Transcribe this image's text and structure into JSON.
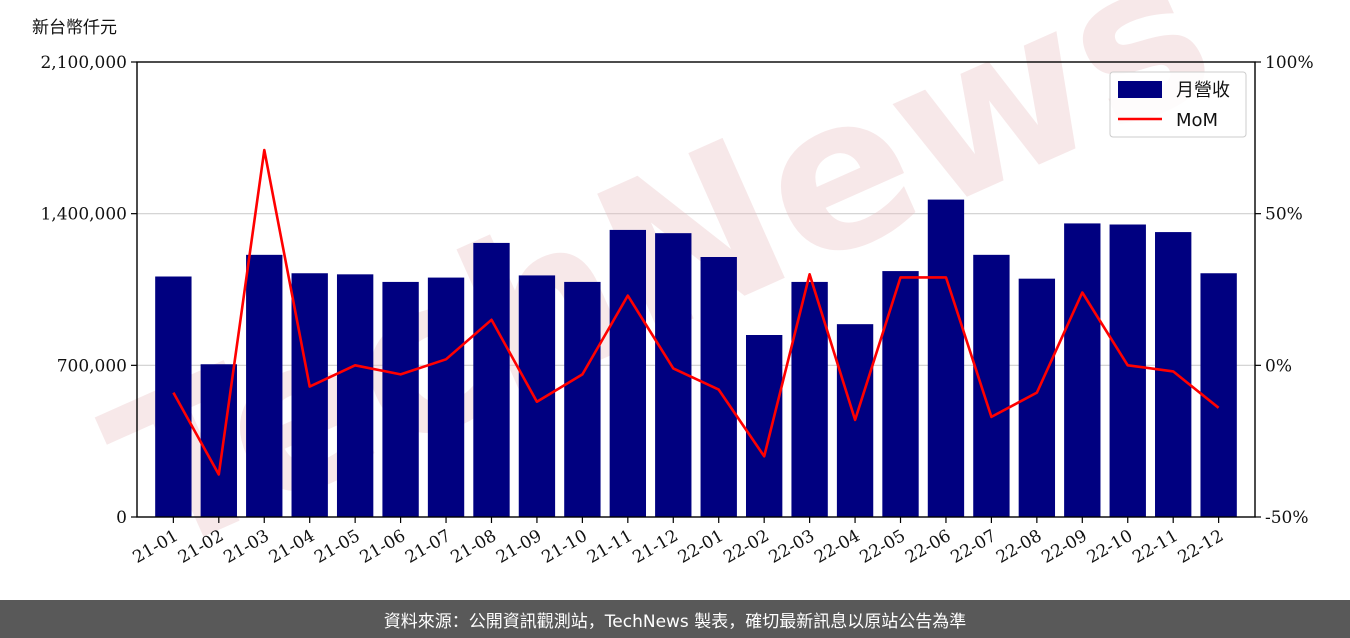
{
  "chart_data": {
    "type": "bar",
    "y_unit_label": "新台幣仟元",
    "categories": [
      "21-01",
      "21-02",
      "21-03",
      "21-04",
      "21-05",
      "21-06",
      "21-07",
      "21-08",
      "21-09",
      "21-10",
      "21-11",
      "21-12",
      "22-01",
      "22-02",
      "22-03",
      "22-04",
      "22-05",
      "22-06",
      "22-07",
      "22-08",
      "22-09",
      "22-10",
      "22-11",
      "22-12"
    ],
    "series": [
      {
        "name": "月營收",
        "type": "bar",
        "axis": "left",
        "color": "#000080",
        "values": [
          1110000,
          705000,
          1210000,
          1125000,
          1120000,
          1085000,
          1105000,
          1265000,
          1115000,
          1085000,
          1325000,
          1310000,
          1200000,
          840000,
          1085000,
          890000,
          1135000,
          1465000,
          1210000,
          1100000,
          1355000,
          1350000,
          1315000,
          1125000
        ]
      },
      {
        "name": "MoM",
        "type": "line",
        "axis": "right",
        "color": "#ff0000",
        "values": [
          -9,
          -36,
          71,
          -7,
          0,
          -3,
          2,
          15,
          -12,
          -3,
          23,
          -1,
          -8,
          -30,
          30,
          -18,
          29,
          29,
          -17,
          -9,
          24,
          0,
          -2,
          -14
        ]
      }
    ],
    "y_left": {
      "min": 0,
      "max": 2100000,
      "ticks": [
        0,
        700000,
        1400000,
        2100000
      ],
      "tick_labels": [
        "0",
        "700,000",
        "1,400,000",
        "2,100,000"
      ]
    },
    "y_right": {
      "min": -50,
      "max": 100,
      "ticks": [
        -50,
        0,
        50,
        100
      ],
      "tick_labels": [
        "-50%",
        "0%",
        "50%",
        "100%"
      ]
    },
    "grid": "horizontal",
    "legend_position": "top-right"
  },
  "watermark_text": "TechNews",
  "footer_text": "資料來源：公開資訊觀測站，TechNews 製表，確切最新訊息以原站公告為準"
}
